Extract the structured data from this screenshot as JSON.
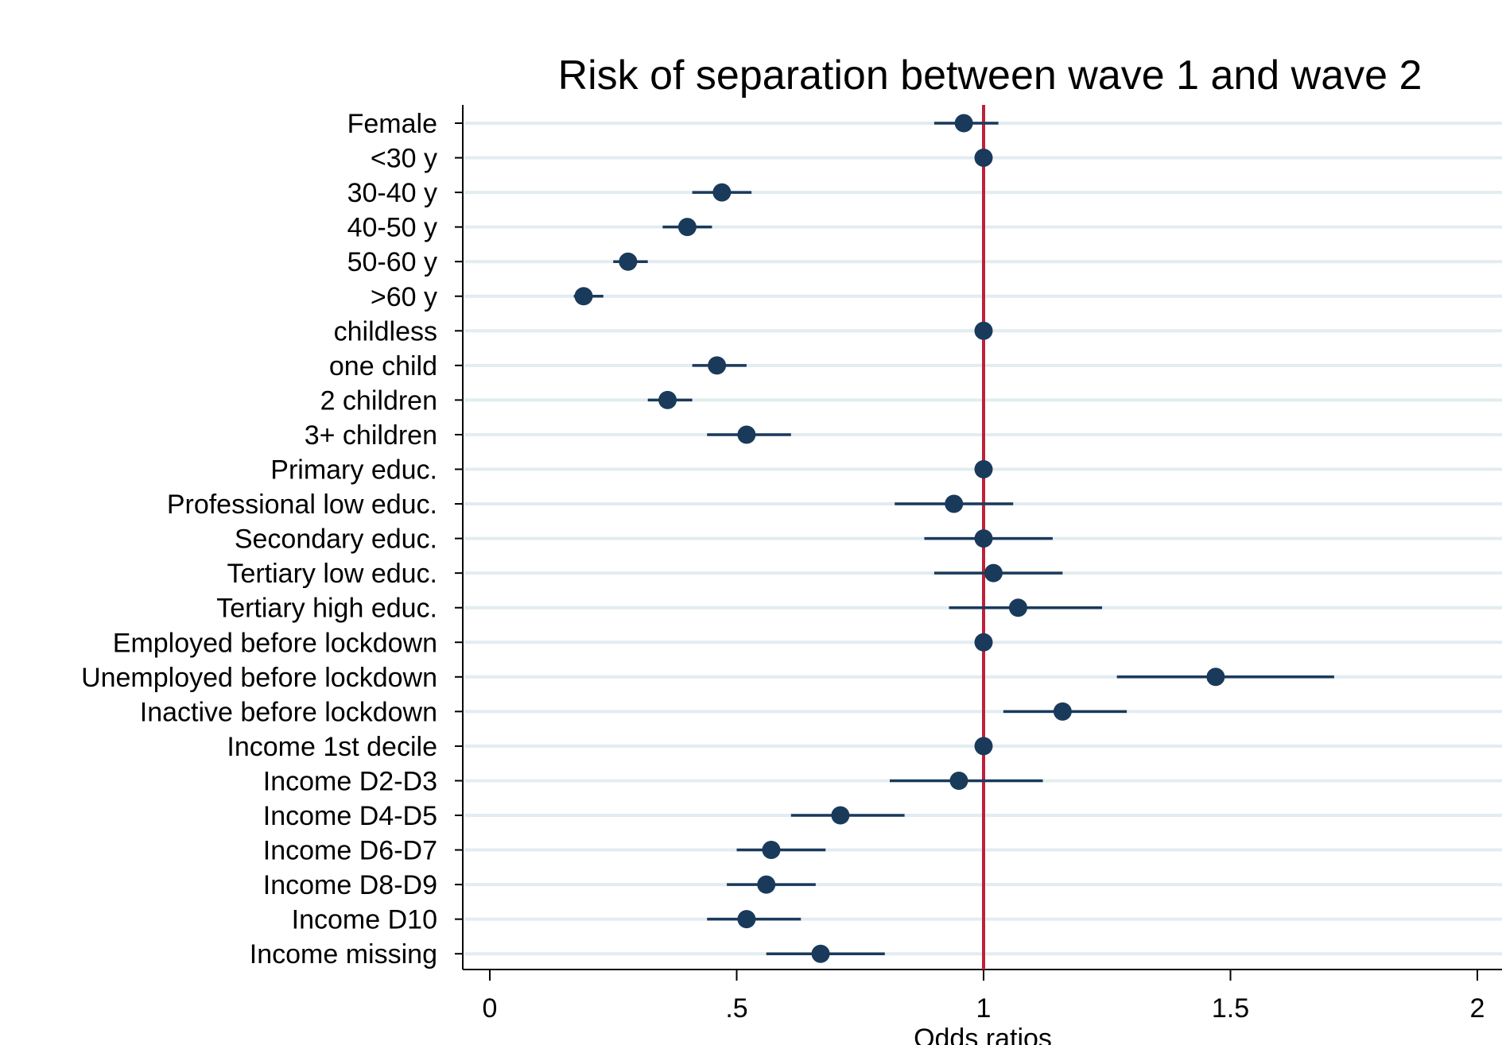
{
  "chart_data": {
    "type": "scatter",
    "title": "Risk of separation between wave 1 and wave 2",
    "xlabel": "Odds ratios",
    "ylabel": "",
    "xlim": [
      -0.05,
      2.05
    ],
    "xticks": [
      0,
      0.5,
      1,
      1.5,
      2
    ],
    "xtick_labels": [
      "0",
      ".5",
      "1",
      "1.5",
      "2"
    ],
    "reference_line": 1,
    "grid": true,
    "colors": {
      "marker": "#1a3a5c",
      "reference": "#c0203a",
      "grid": "#e3ecf0"
    },
    "categories": [
      "Female",
      "<30 y",
      "30-40 y",
      "40-50 y",
      "50-60 y",
      ">60 y",
      "childless",
      "one child",
      "2 children",
      "3+ children",
      "Primary educ.",
      "Professional low educ.",
      "Secondary educ.",
      "Tertiary low educ.",
      "Tertiary high educ.",
      "Employed before lockdown",
      "Unemployed before lockdown",
      "Inactive before lockdown",
      "Income 1st decile",
      "Income D2-D3",
      "Income D4-D5",
      "Income D6-D7",
      "Income D8-D9",
      "Income D10",
      "Income missing"
    ],
    "values": [
      0.96,
      1.0,
      0.47,
      0.4,
      0.28,
      0.19,
      1.0,
      0.46,
      0.36,
      0.52,
      1.0,
      0.94,
      1.0,
      1.02,
      1.07,
      1.0,
      1.47,
      1.16,
      1.0,
      0.95,
      0.71,
      0.57,
      0.56,
      0.52,
      0.67
    ],
    "ci_low": [
      0.9,
      null,
      0.41,
      0.35,
      0.25,
      0.17,
      null,
      0.41,
      0.32,
      0.44,
      null,
      0.82,
      0.88,
      0.9,
      0.93,
      null,
      1.27,
      1.04,
      null,
      0.81,
      0.61,
      0.5,
      0.48,
      0.44,
      0.56
    ],
    "ci_high": [
      1.03,
      null,
      0.53,
      0.45,
      0.32,
      0.23,
      null,
      0.52,
      0.41,
      0.61,
      null,
      1.06,
      1.14,
      1.16,
      1.24,
      null,
      1.71,
      1.29,
      null,
      1.12,
      0.84,
      0.68,
      0.66,
      0.63,
      0.8
    ]
  }
}
